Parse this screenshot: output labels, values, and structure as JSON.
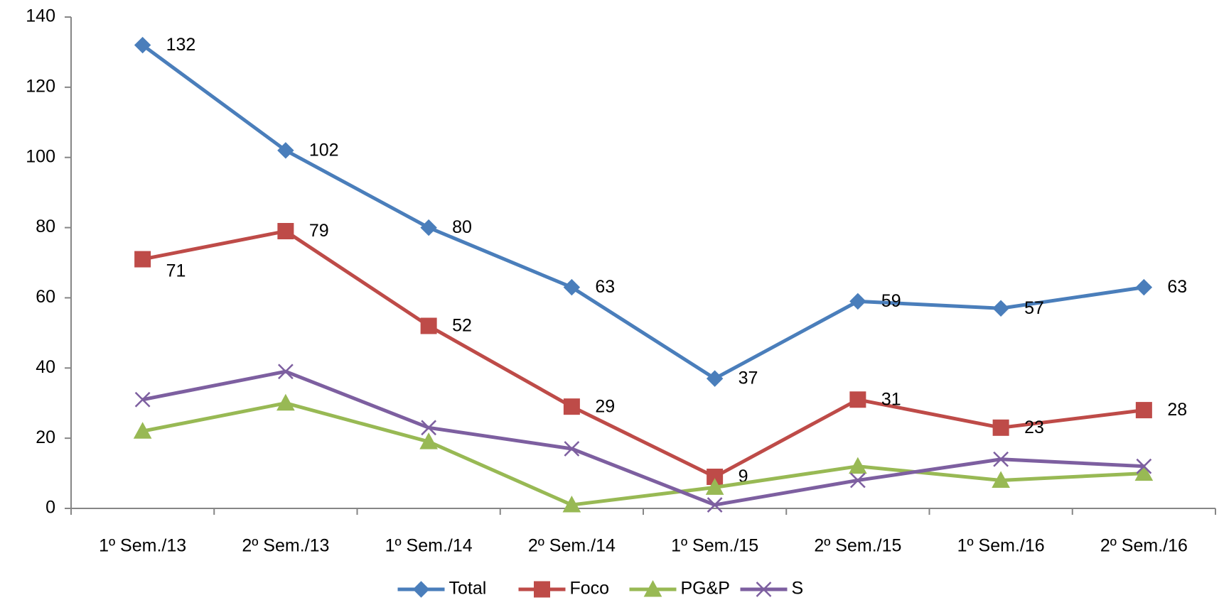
{
  "chart_data": {
    "type": "line",
    "categories": [
      "1º Sem./13",
      "2º Sem./13",
      "1º Sem./14",
      "2º Sem./14",
      "1º Sem./15",
      "2º Sem./15",
      "1º Sem./16",
      "2º Sem./16"
    ],
    "series": [
      {
        "name": "Total",
        "color": "#4a7ebb",
        "marker": "diamond",
        "labels": true,
        "values": [
          132,
          102,
          80,
          63,
          37,
          59,
          57,
          63
        ]
      },
      {
        "name": "Foco",
        "color": "#be4b48",
        "marker": "square",
        "labels": true,
        "values": [
          71,
          79,
          52,
          29,
          9,
          31,
          23,
          28
        ]
      },
      {
        "name": "PG&P",
        "color": "#98b954",
        "marker": "triangle",
        "labels": false,
        "values": [
          22,
          30,
          19,
          1,
          6,
          12,
          8,
          10
        ]
      },
      {
        "name": "S",
        "color": "#7d5fa0",
        "marker": "x",
        "labels": false,
        "values": [
          31,
          39,
          23,
          17,
          1,
          8,
          14,
          12
        ]
      }
    ],
    "ylim": [
      0,
      140
    ],
    "yticks": [
      0,
      20,
      40,
      60,
      80,
      100,
      120,
      140
    ],
    "grid": false,
    "legend": "bottom"
  }
}
